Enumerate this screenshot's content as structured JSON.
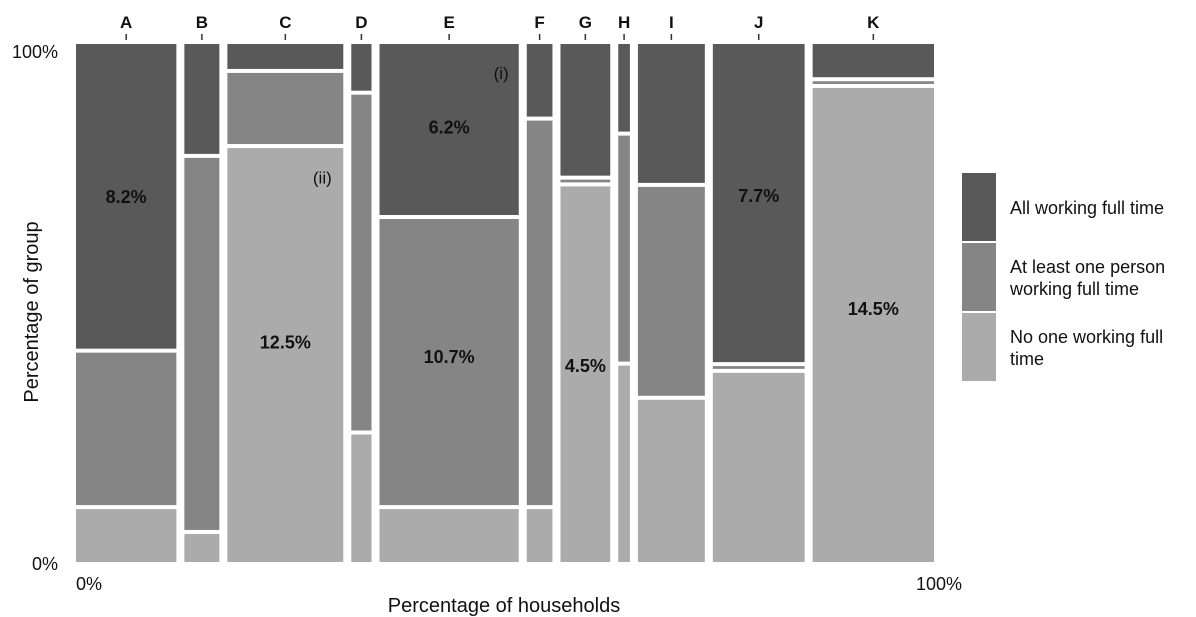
{
  "chart_data": {
    "type": "mosaic",
    "xlabel": "Percentage of households",
    "ylabel": "Percentage of group",
    "x_ticks": {
      "start": "0%",
      "end": "100%"
    },
    "y_ticks": {
      "bottom": "0%",
      "top": "100%"
    },
    "colors": {
      "all_full_time": "#595959",
      "at_least_one": "#858585",
      "no_one": "#ababab"
    },
    "legend": {
      "placement": "right",
      "entries": [
        {
          "key": "all_full_time",
          "lines": [
            "All working full time"
          ]
        },
        {
          "key": "at_least_one",
          "lines": [
            "At least one person",
            "working full time"
          ]
        },
        {
          "key": "no_one",
          "lines": [
            "No one working full",
            "time"
          ]
        }
      ]
    },
    "categories": [
      {
        "name": "A",
        "share": 12.9,
        "no_one": 10.6,
        "at_least_one": 30.2,
        "all_full_time": 59.2
      },
      {
        "name": "B",
        "share": 4.5,
        "no_one": 5.8,
        "at_least_one": 72.6,
        "all_full_time": 21.6
      },
      {
        "name": "C",
        "share": 14.9,
        "no_one": 80.3,
        "at_least_one": 14.5,
        "all_full_time": 5.2
      },
      {
        "name": "D",
        "share": 2.6,
        "no_one": 25.0,
        "at_least_one": 65.6,
        "all_full_time": 9.4
      },
      {
        "name": "E",
        "share": 17.9,
        "no_one": 10.6,
        "at_least_one": 56.0,
        "all_full_time": 33.4
      },
      {
        "name": "F",
        "share": 3.3,
        "no_one": 10.6,
        "at_least_one": 75.0,
        "all_full_time": 14.4
      },
      {
        "name": "G",
        "share": 6.4,
        "no_one": 72.9,
        "at_least_one": 1.3,
        "all_full_time": 25.8
      },
      {
        "name": "H",
        "share": 1.5,
        "no_one": 38.3,
        "at_least_one": 44.4,
        "all_full_time": 17.3
      },
      {
        "name": "I",
        "share": 8.6,
        "no_one": 31.7,
        "at_least_one": 41.1,
        "all_full_time": 27.2
      },
      {
        "name": "J",
        "share": 11.8,
        "no_one": 36.9,
        "at_least_one": 1.3,
        "all_full_time": 61.8
      },
      {
        "name": "K",
        "share": 15.6,
        "no_one": 91.9,
        "at_least_one": 1.3,
        "all_full_time": 6.8
      }
    ],
    "labels": [
      {
        "text": "8.2%",
        "category": "A",
        "y_pct": 70.5
      },
      {
        "text": "12.5%",
        "category": "C",
        "y_pct": 42.4
      },
      {
        "text": "6.2%",
        "category": "E",
        "y_pct": 83.9
      },
      {
        "text": "10.7%",
        "category": "E",
        "y_pct": 39.6
      },
      {
        "text": "4.5%",
        "category": "G",
        "y_pct": 37.8
      },
      {
        "text": "7.7%",
        "category": "J",
        "y_pct": 70.7
      },
      {
        "text": "14.5%",
        "category": "K",
        "y_pct": 48.8
      }
    ],
    "annotations": [
      {
        "text": "(i)",
        "category": "E",
        "y_pct": 94.4
      },
      {
        "text": "(ii)",
        "category": "C",
        "y_pct": 74.2
      }
    ]
  }
}
